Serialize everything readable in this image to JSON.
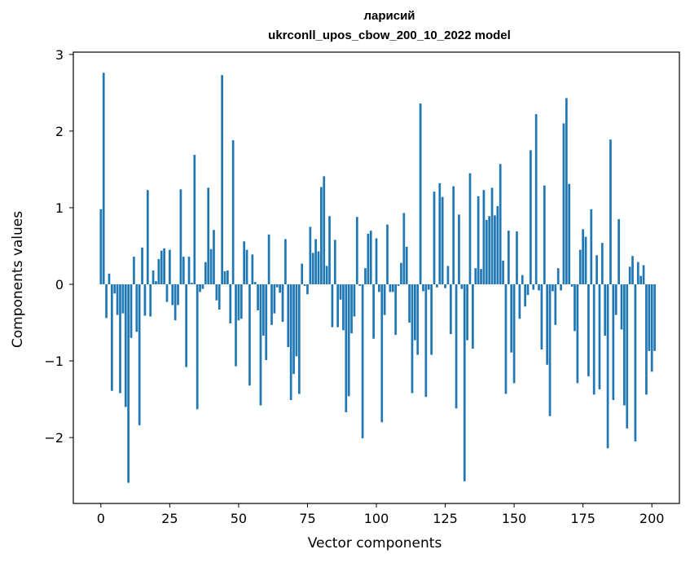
{
  "chart_data": {
    "type": "bar",
    "title": "ларисий",
    "subtitle": "ukrconll_upos_cbow_200_10_2022 model",
    "xlabel": "Vector components",
    "ylabel": "Components values",
    "xlim": [
      -10,
      210
    ],
    "ylim": [
      -2.86,
      3.03
    ],
    "xticks": [
      0,
      25,
      50,
      75,
      100,
      125,
      150,
      175,
      200
    ],
    "yticks": [
      -2,
      -1,
      0,
      1,
      2,
      3
    ],
    "bar_color": "#1f77b4",
    "grid": false,
    "values": [
      0.98,
      2.76,
      -0.44,
      0.14,
      -1.39,
      -0.12,
      -0.4,
      -1.42,
      -0.38,
      -1.6,
      -2.59,
      -0.7,
      0.36,
      -0.62,
      -1.84,
      0.48,
      -0.41,
      1.23,
      -0.42,
      0.18,
      0.04,
      0.33,
      0.44,
      0.47,
      -0.23,
      0.45,
      -0.27,
      -0.47,
      -0.27,
      1.24,
      0.36,
      -1.08,
      0.36,
      0.02,
      1.69,
      -1.63,
      -0.1,
      -0.06,
      0.29,
      1.26,
      0.46,
      0.71,
      -0.21,
      -0.33,
      2.73,
      0.17,
      0.18,
      -0.51,
      1.88,
      -1.07,
      -0.47,
      -0.45,
      0.56,
      0.45,
      -1.32,
      0.39,
      0.03,
      -0.34,
      -1.58,
      -0.67,
      -0.99,
      0.65,
      -0.53,
      -0.38,
      -0.04,
      -0.11,
      -0.49,
      0.59,
      -0.82,
      -1.51,
      -1.17,
      -0.94,
      -1.43,
      0.27,
      -0.02,
      -0.13,
      0.75,
      0.41,
      0.59,
      0.43,
      1.27,
      1.41,
      0.24,
      0.89,
      -0.56,
      0.58,
      -0.56,
      -0.2,
      -0.6,
      -1.67,
      -1.46,
      -0.64,
      -0.42,
      0.88,
      -0.02,
      -2.01,
      0.21,
      0.66,
      0.7,
      -0.71,
      0.6,
      -0.1,
      -1.8,
      -0.4,
      0.78,
      -0.1,
      -0.1,
      -0.66,
      -0.02,
      0.28,
      0.93,
      0.49,
      -0.5,
      -1.42,
      -0.73,
      -0.92,
      2.36,
      -0.09,
      -1.47,
      -0.07,
      -0.92,
      1.21,
      -0.04,
      1.32,
      1.14,
      -0.05,
      0.24,
      -0.65,
      1.28,
      -1.62,
      0.91,
      -0.06,
      -2.57,
      -0.73,
      1.45,
      -0.84,
      0.21,
      1.15,
      0.2,
      1.23,
      0.84,
      0.89,
      1.26,
      0.9,
      1.02,
      1.57,
      0.31,
      -1.43,
      0.7,
      -0.89,
      -1.29,
      0.69,
      -0.45,
      0.12,
      -0.29,
      -0.14,
      1.75,
      -0.07,
      2.22,
      -0.08,
      -0.85,
      1.29,
      -1.05,
      -1.72,
      -0.09,
      -0.53,
      0.21,
      -0.08,
      2.1,
      2.43,
      1.31,
      -0.03,
      -0.61,
      -1.29,
      0.45,
      0.72,
      0.62,
      -1.2,
      0.98,
      -1.44,
      0.38,
      -1.37,
      0.54,
      -0.67,
      -2.14,
      1.89,
      -1.51,
      -0.4,
      0.85,
      -0.59,
      -1.58,
      -1.88,
      0.23,
      0.37,
      -2.05,
      0.29,
      0.11,
      0.25,
      -1.44,
      -0.87,
      -1.14,
      -0.87
    ]
  }
}
